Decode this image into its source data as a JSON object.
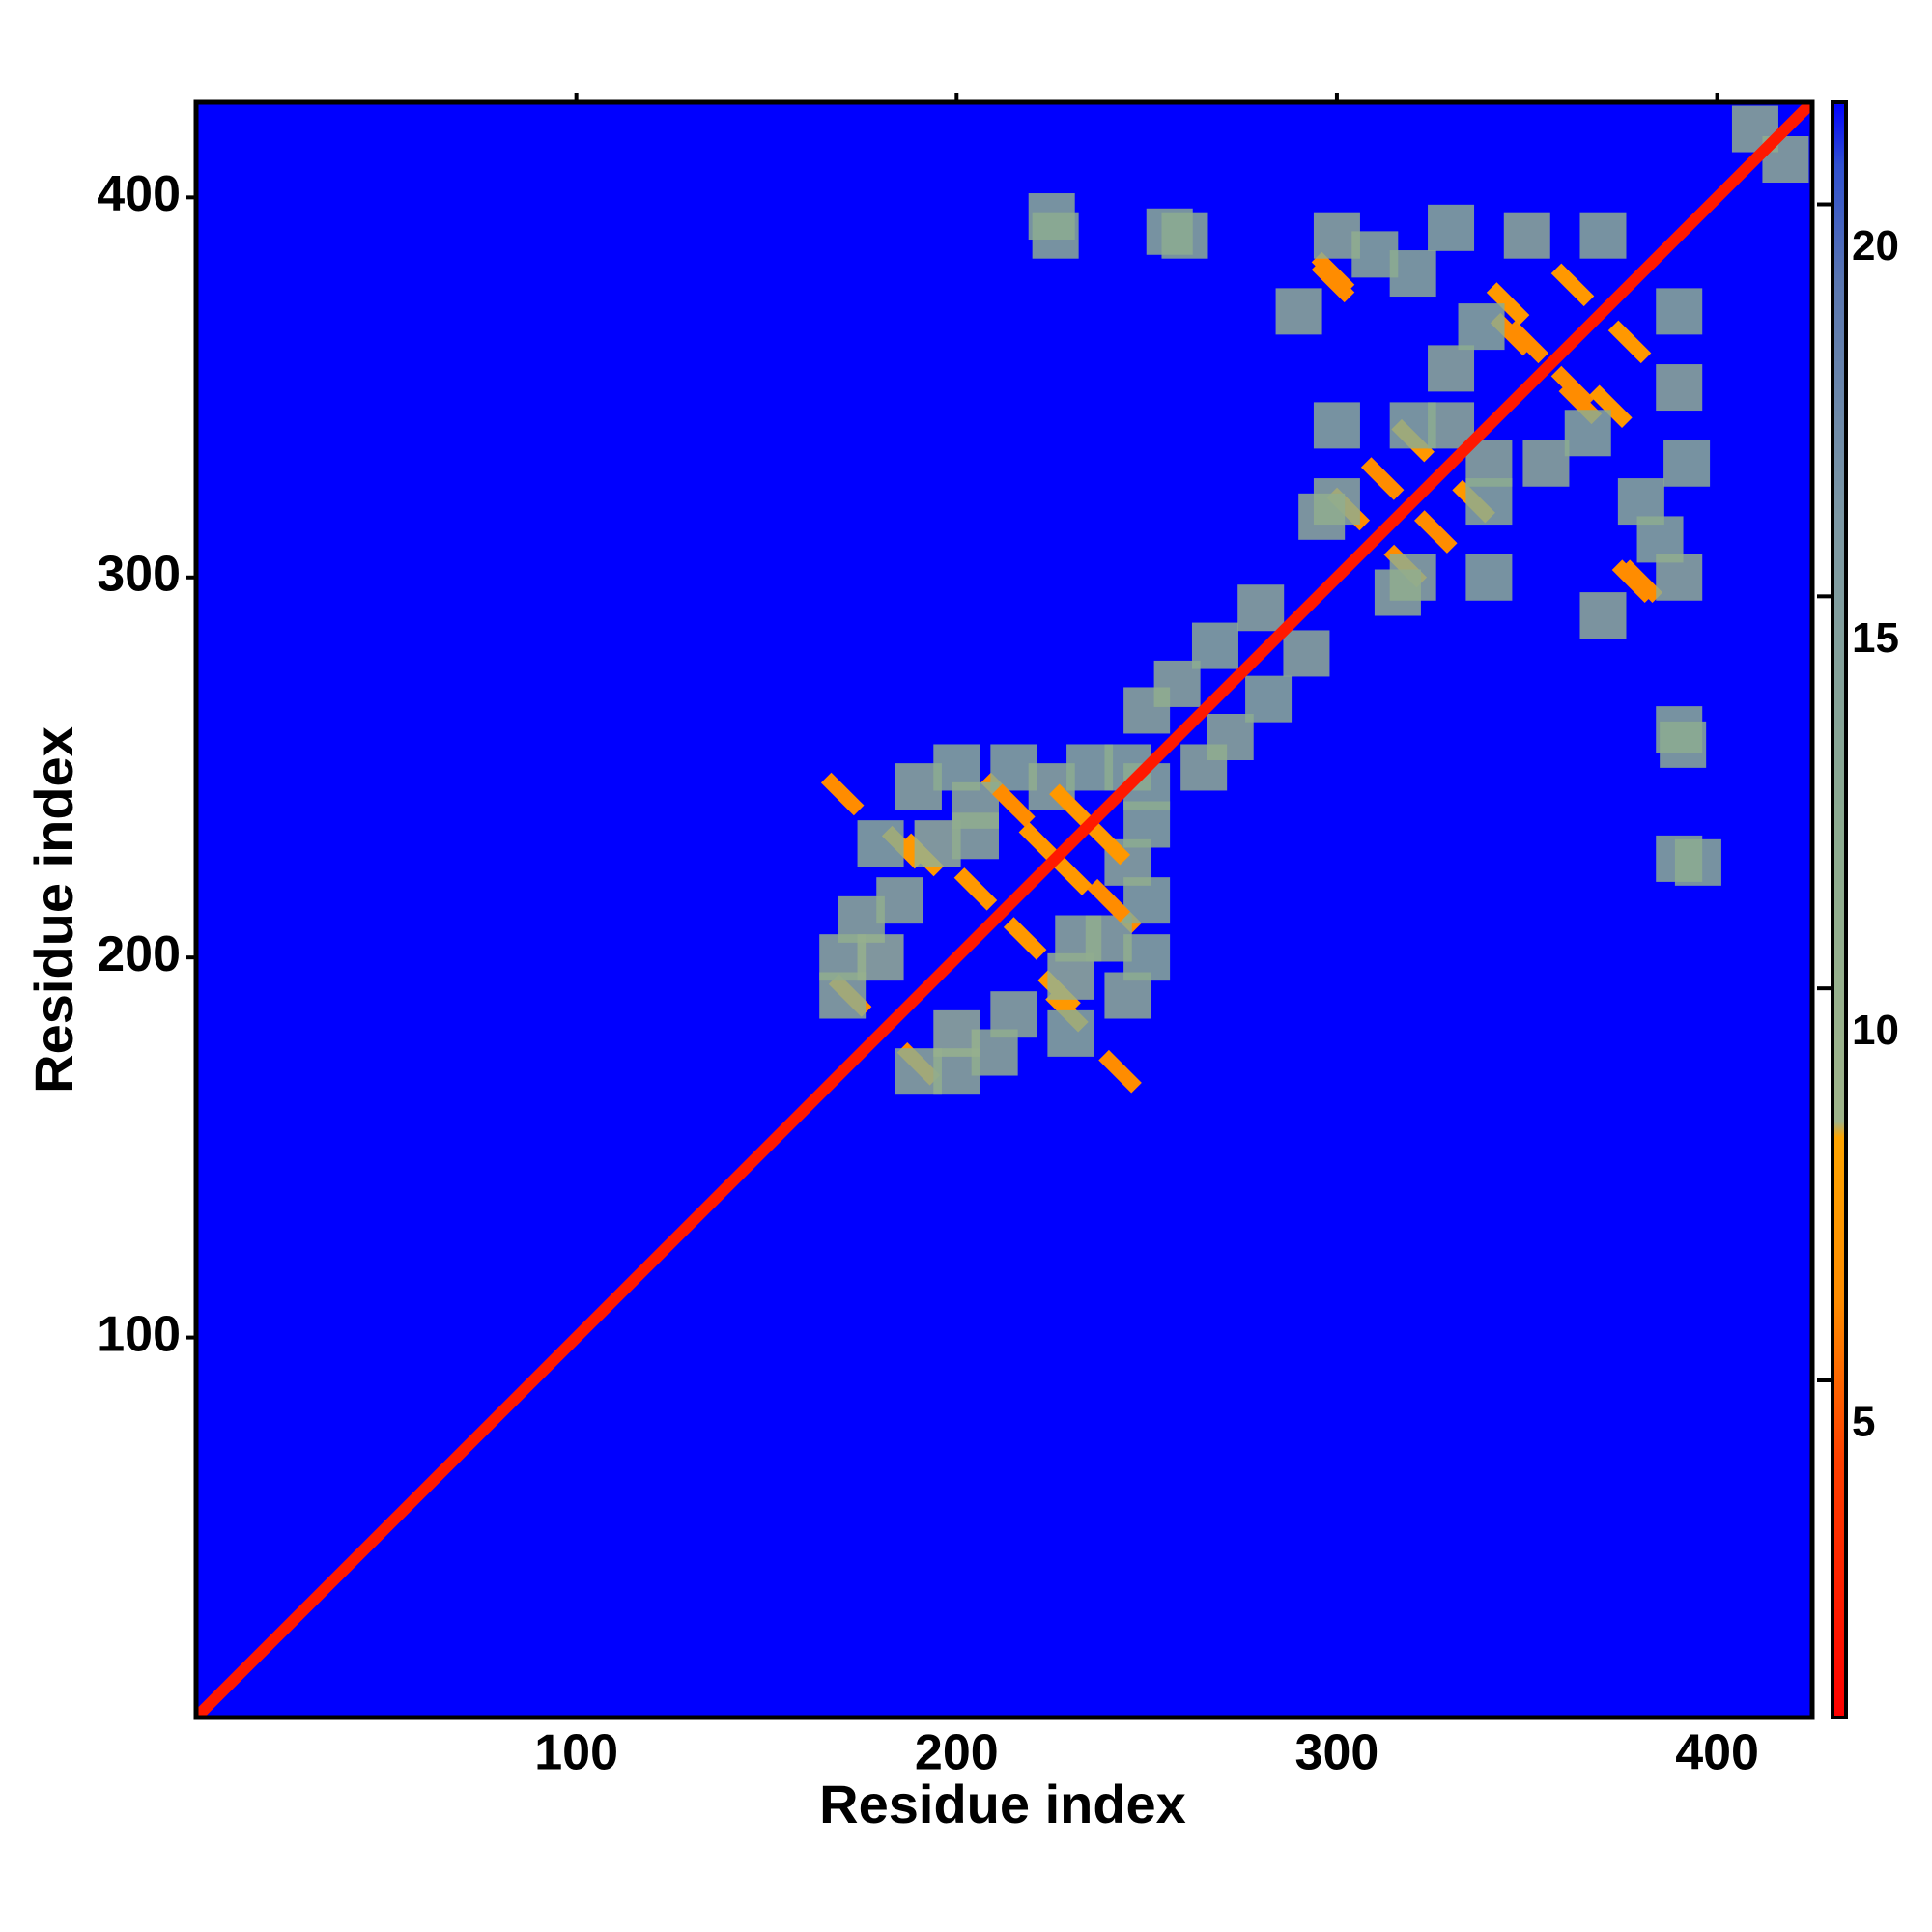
{
  "chart_data": {
    "type": "heatmap",
    "xlabel": "Residue index",
    "ylabel": "Residue index",
    "xlim": [
      0,
      425
    ],
    "ylim": [
      0,
      425
    ],
    "xticks": [
      100,
      200,
      300,
      400
    ],
    "yticks": [
      100,
      200,
      300,
      400
    ],
    "clim": [
      0.7,
      21.3
    ],
    "cticks": [
      5,
      10,
      15,
      20
    ],
    "colorscale": [
      [
        0.7,
        "#ff0000"
      ],
      [
        4,
        "#ff4000"
      ],
      [
        6,
        "#ff8c00"
      ],
      [
        8.1,
        "#ffa500"
      ],
      [
        8.3,
        "#9fb48a"
      ],
      [
        12,
        "#8cab90"
      ],
      [
        16,
        "#7c98a4"
      ],
      [
        19,
        "#5a76b0"
      ],
      [
        20.5,
        "#3050d0"
      ],
      [
        21.3,
        "#0000ff"
      ]
    ],
    "background": 21.3,
    "diagonal": {
      "x": [
        0,
        425
      ],
      "y": [
        0,
        425
      ],
      "value": 2
    },
    "cells": {
      "x": [
        170,
        212,
        186,
        191,
        172,
        170,
        175,
        180,
        190,
        200,
        185,
        195,
        205,
        215,
        225,
        235,
        170,
        180,
        230,
        245,
        205,
        222,
        240,
        232,
        250,
        258,
        268,
        280,
        299,
        346,
        362,
        320,
        303,
        312,
        330,
        299,
        225,
        260,
        290,
        310,
        350,
        370,
        300,
        330,
        300,
        340,
        380,
        390,
        256,
        226,
        350,
        372,
        392,
        410,
        296,
        338
      ],
      "y": [
        243,
        243,
        229,
        227,
        190,
        190,
        210,
        230,
        245,
        250,
        215,
        230,
        240,
        250,
        245,
        250,
        200,
        200,
        240,
        250,
        218,
        230,
        215,
        205,
        265,
        272,
        282,
        292,
        380,
        364,
        377,
        336,
        318,
        326,
        340,
        378,
        395,
        390,
        370,
        385,
        390,
        390,
        340,
        355,
        320,
        320,
        320,
        300,
        391,
        390,
        362,
        345,
        330,
        418,
        316,
        366
      ],
      "values": [
        6,
        6,
        7,
        7,
        6,
        11,
        11,
        12,
        11,
        12,
        11,
        10,
        11,
        12,
        11,
        12,
        11,
        10,
        7,
        12,
        7,
        7,
        6,
        11,
        11,
        11,
        12,
        11,
        6,
        6,
        7,
        7,
        6,
        6,
        11,
        6,
        12,
        12,
        11,
        12,
        11,
        12,
        12,
        11,
        11,
        12,
        12,
        11,
        12,
        12,
        6,
        7,
        12,
        11,
        11,
        12
      ]
    }
  }
}
